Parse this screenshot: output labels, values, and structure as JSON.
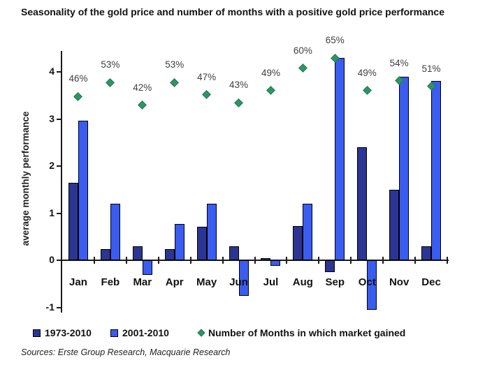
{
  "page": {
    "title": "Seasonality of the gold price and number of months with a positive gold price performance",
    "sources": "Sources: Erste Group Research, Macquarie Research"
  },
  "chart_data": {
    "type": "bar",
    "title": "Seasonality of the gold price and number of months with a positive gold price performance",
    "categories": [
      "Jan",
      "Feb",
      "Mar",
      "Apr",
      "May",
      "Jun",
      "Jul",
      "Aug",
      "Sep",
      "Oct",
      "Nov",
      "Dec"
    ],
    "series": [
      {
        "name": "1973-2010",
        "color": "#2B3592",
        "values": [
          1.65,
          0.25,
          0.3,
          0.25,
          0.72,
          0.3,
          0.05,
          0.73,
          -0.25,
          2.4,
          1.5,
          0.3
        ]
      },
      {
        "name": "2001-2010",
        "color": "#3A5CF0",
        "values": [
          2.97,
          1.2,
          -0.3,
          0.78,
          1.2,
          -0.75,
          -0.12,
          1.2,
          4.3,
          -1.05,
          3.9,
          3.82
        ]
      }
    ],
    "markers": {
      "name": "Number of Months in which market gained",
      "color": "#2E9464",
      "labels": [
        "46%",
        "53%",
        "42%",
        "53%",
        "47%",
        "43%",
        "49%",
        "60%",
        "65%",
        "49%",
        "54%",
        "51%"
      ],
      "values_pct": [
        46,
        53,
        42,
        53,
        47,
        43,
        49,
        60,
        65,
        49,
        54,
        51
      ],
      "y_axis_units": [
        3.48,
        3.78,
        3.3,
        3.78,
        3.52,
        3.35,
        3.61,
        4.08,
        4.3,
        3.61,
        3.82,
        3.7
      ]
    },
    "xlabel": "",
    "ylabel": "average monthly performance",
    "yticks": [
      -1,
      0,
      1,
      2,
      3,
      4
    ],
    "ylim": [
      -1.1,
      4.45
    ],
    "grid": false,
    "legend_position": "bottom"
  }
}
